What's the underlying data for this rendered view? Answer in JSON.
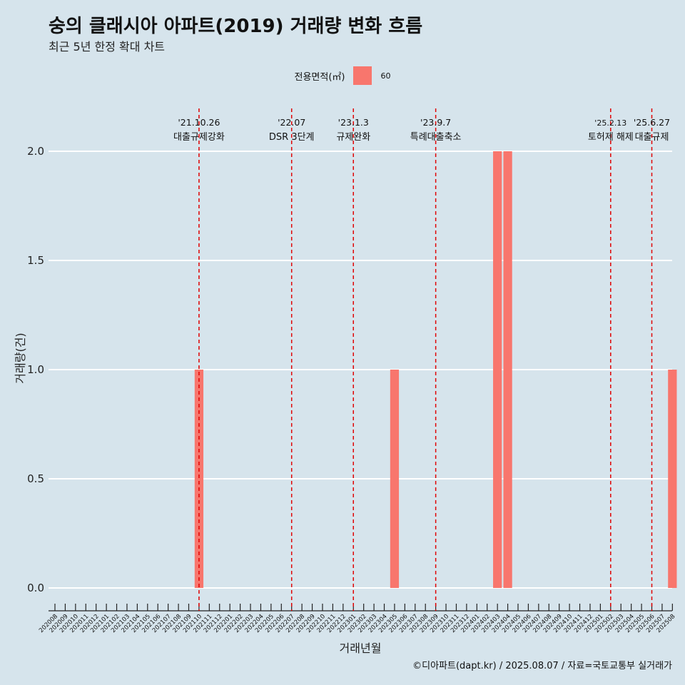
{
  "chart_data": {
    "type": "bar",
    "title": "숭의 클래시아 아파트(2019) 거래량 변화 흐름",
    "subtitle": "최근 5년 한정 확대 차트",
    "xlabel": "거래년월",
    "ylabel": "거래량(건)",
    "ylim": [
      0,
      2.0
    ],
    "yticks": [
      "0.0",
      "0.5",
      "1.0",
      "1.5",
      "2.0"
    ],
    "legend": {
      "title": "전용면적(㎡)",
      "placement": "top-center",
      "entries": [
        {
          "label": "60",
          "color": "#f8766d"
        }
      ]
    },
    "categories": [
      "202008",
      "202009",
      "202010",
      "202011",
      "202012",
      "202101",
      "202102",
      "202103",
      "202104",
      "202105",
      "202106",
      "202107",
      "202108",
      "202109",
      "202110",
      "202111",
      "202112",
      "202201",
      "202202",
      "202203",
      "202204",
      "202205",
      "202206",
      "202207",
      "202208",
      "202209",
      "202210",
      "202211",
      "202212",
      "202301",
      "202302",
      "202303",
      "202304",
      "202305",
      "202306",
      "202307",
      "202308",
      "202309",
      "202310",
      "202311",
      "202312",
      "202401",
      "202402",
      "202403",
      "202404",
      "202405",
      "202406",
      "202407",
      "202408",
      "202409",
      "202410",
      "202411",
      "202412",
      "202501",
      "202502",
      "202503",
      "202504",
      "202505",
      "202506",
      "202507",
      "202508"
    ],
    "series": [
      {
        "name": "60",
        "color": "#f8766d",
        "values": [
          0,
          0,
          0,
          0,
          0,
          0,
          0,
          0,
          0,
          0,
          0,
          0,
          0,
          0,
          1,
          0,
          0,
          0,
          0,
          0,
          0,
          0,
          0,
          0,
          0,
          0,
          0,
          0,
          0,
          0,
          0,
          0,
          0,
          1,
          0,
          0,
          0,
          0,
          0,
          0,
          0,
          0,
          0,
          2,
          2,
          0,
          0,
          0,
          0,
          0,
          0,
          0,
          0,
          0,
          0,
          0,
          0,
          0,
          0,
          0,
          1
        ]
      }
    ],
    "annotations": [
      {
        "x": "202110",
        "date": "'21.10.26",
        "label": "대출규제강화"
      },
      {
        "x": "202207",
        "date": "'22.07",
        "label": "DSR 3단계"
      },
      {
        "x": "202301",
        "date": "'23.1.3",
        "label": "규제완화"
      },
      {
        "x": "202309",
        "date": "'23.9.7",
        "label": "특례대출축소"
      },
      {
        "x": "202502",
        "date": "'25.2.13",
        "label": "토허제 해제"
      },
      {
        "x": "202506",
        "date": "'25.6.27",
        "label": "대출규제"
      }
    ],
    "grid": true
  },
  "caption": "©디아파트(dapt.kr) / 2025.08.07 / 자료=국토교통부 실거래가"
}
